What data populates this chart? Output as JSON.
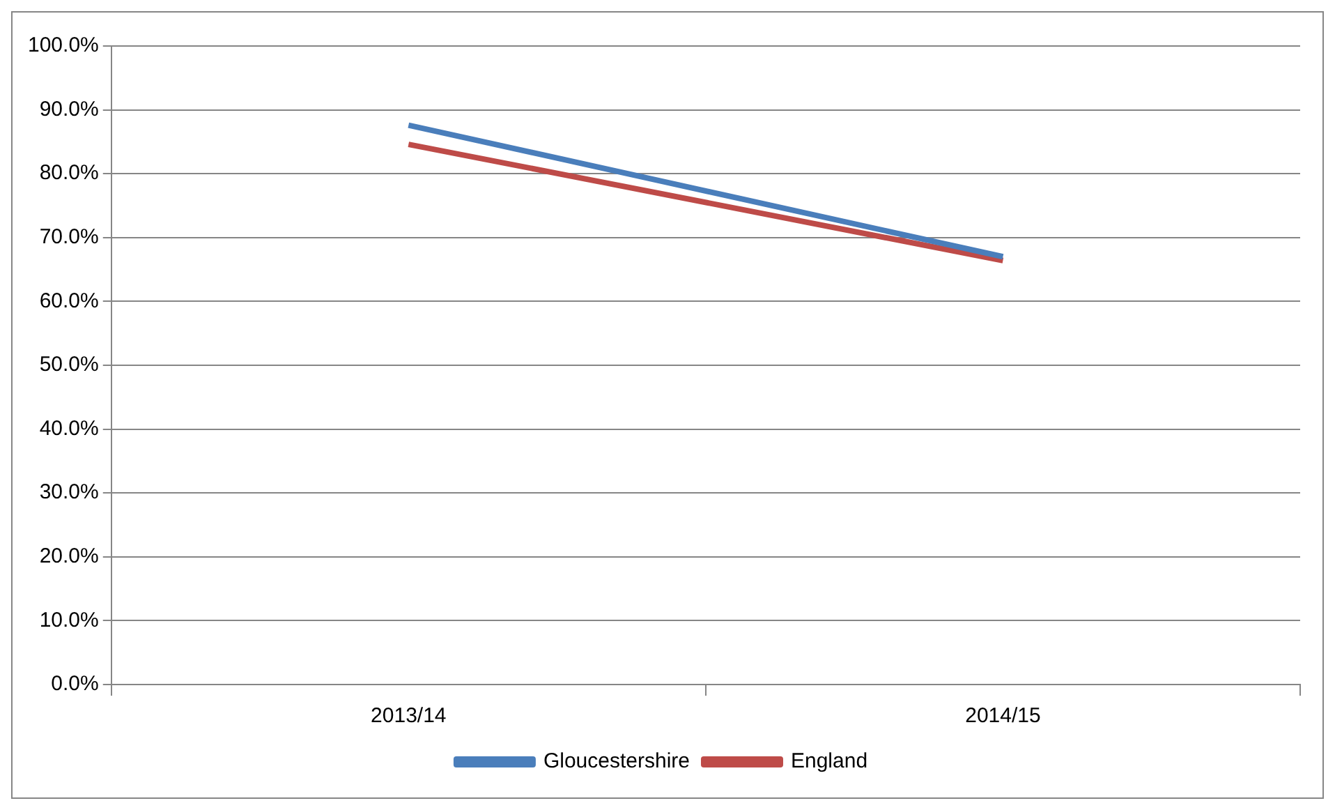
{
  "chart_data": {
    "type": "line",
    "categories": [
      "2013/14",
      "2014/15"
    ],
    "series": [
      {
        "name": "Gloucestershire",
        "color": "#4a7ebb",
        "values": [
          87.6,
          67.0
        ]
      },
      {
        "name": "England",
        "color": "#be4b48",
        "values": [
          84.6,
          66.4
        ]
      }
    ],
    "ylim": [
      0,
      100
    ],
    "yticks": [
      {
        "value": 0,
        "label": "0.0%"
      },
      {
        "value": 10,
        "label": "10.0%"
      },
      {
        "value": 20,
        "label": "20.0%"
      },
      {
        "value": 30,
        "label": "30.0%"
      },
      {
        "value": 40,
        "label": "40.0%"
      },
      {
        "value": 50,
        "label": "50.0%"
      },
      {
        "value": 60,
        "label": "60.0%"
      },
      {
        "value": 70,
        "label": "70.0%"
      },
      {
        "value": 80,
        "label": "80.0%"
      },
      {
        "value": 90,
        "label": "90.0%"
      },
      {
        "value": 100,
        "label": "100.0%"
      }
    ],
    "grid": "y",
    "legend": "bottom",
    "marker": "none",
    "line_style": "solid"
  }
}
